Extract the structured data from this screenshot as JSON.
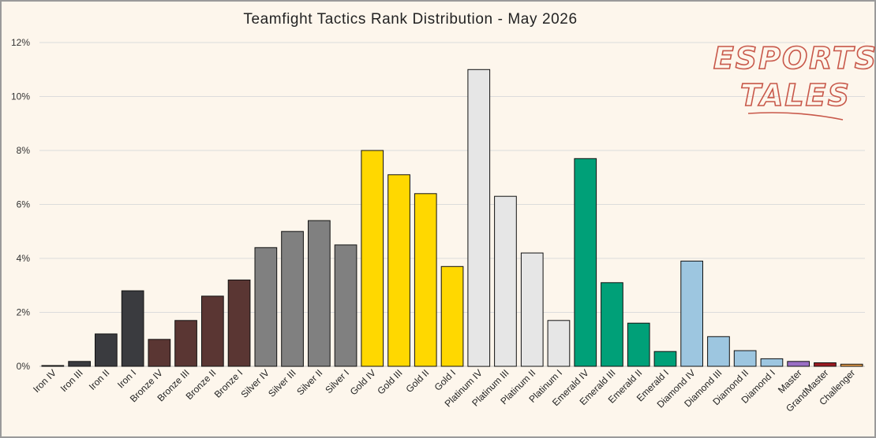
{
  "chart_data": {
    "type": "bar",
    "title": "Teamfight Tactics Rank Distribution - May 2026",
    "xlabel": "",
    "ylabel": "",
    "ylim": [
      0,
      12
    ],
    "yticks": [
      "0%",
      "2%",
      "4%",
      "6%",
      "8%",
      "10%",
      "12%"
    ],
    "grid": true,
    "legend": "none",
    "categories": [
      "Iron IV",
      "Iron III",
      "Iron II",
      "Iron I",
      "Bronze IV",
      "Bronze III",
      "Bronze II",
      "Bronze I",
      "Silver IV",
      "Silver III",
      "Silver II",
      "Silver I",
      "Gold IV",
      "Gold III",
      "Gold II",
      "Gold I",
      "Platinum IV",
      "Platinum III",
      "Platinum II",
      "Platinum I",
      "Emerald IV",
      "Emerald III",
      "Emerald II",
      "Emerald I",
      "Diamond IV",
      "Diamond III",
      "Diamond II",
      "Diamond I",
      "Master",
      "GrandMaster",
      "Challenger"
    ],
    "values": [
      0.03,
      0.18,
      1.2,
      2.8,
      1.0,
      1.7,
      2.6,
      3.2,
      4.4,
      5.0,
      5.4,
      4.5,
      8.0,
      7.1,
      6.4,
      3.7,
      11.0,
      6.3,
      4.2,
      1.7,
      7.7,
      3.1,
      1.6,
      0.55,
      3.9,
      1.1,
      0.58,
      0.28,
      0.18,
      0.13,
      0.08
    ],
    "colors": [
      "#3a3b3f",
      "#3a3b3f",
      "#3a3b3f",
      "#3a3b3f",
      "#5a3633",
      "#5a3633",
      "#5a3633",
      "#5a3633",
      "#808080",
      "#808080",
      "#808080",
      "#808080",
      "#ffd800",
      "#ffd800",
      "#ffd800",
      "#ffd800",
      "#e6e6e6",
      "#e6e6e6",
      "#e6e6e6",
      "#e6e6e6",
      "#00a078",
      "#00a078",
      "#00a078",
      "#00a078",
      "#9dc6e0",
      "#9dc6e0",
      "#9dc6e0",
      "#9dc6e0",
      "#9a6fc4",
      "#9b1b22",
      "#f0a24a"
    ]
  },
  "logo": {
    "line1": "ESPORTS",
    "line2": "TALES"
  }
}
